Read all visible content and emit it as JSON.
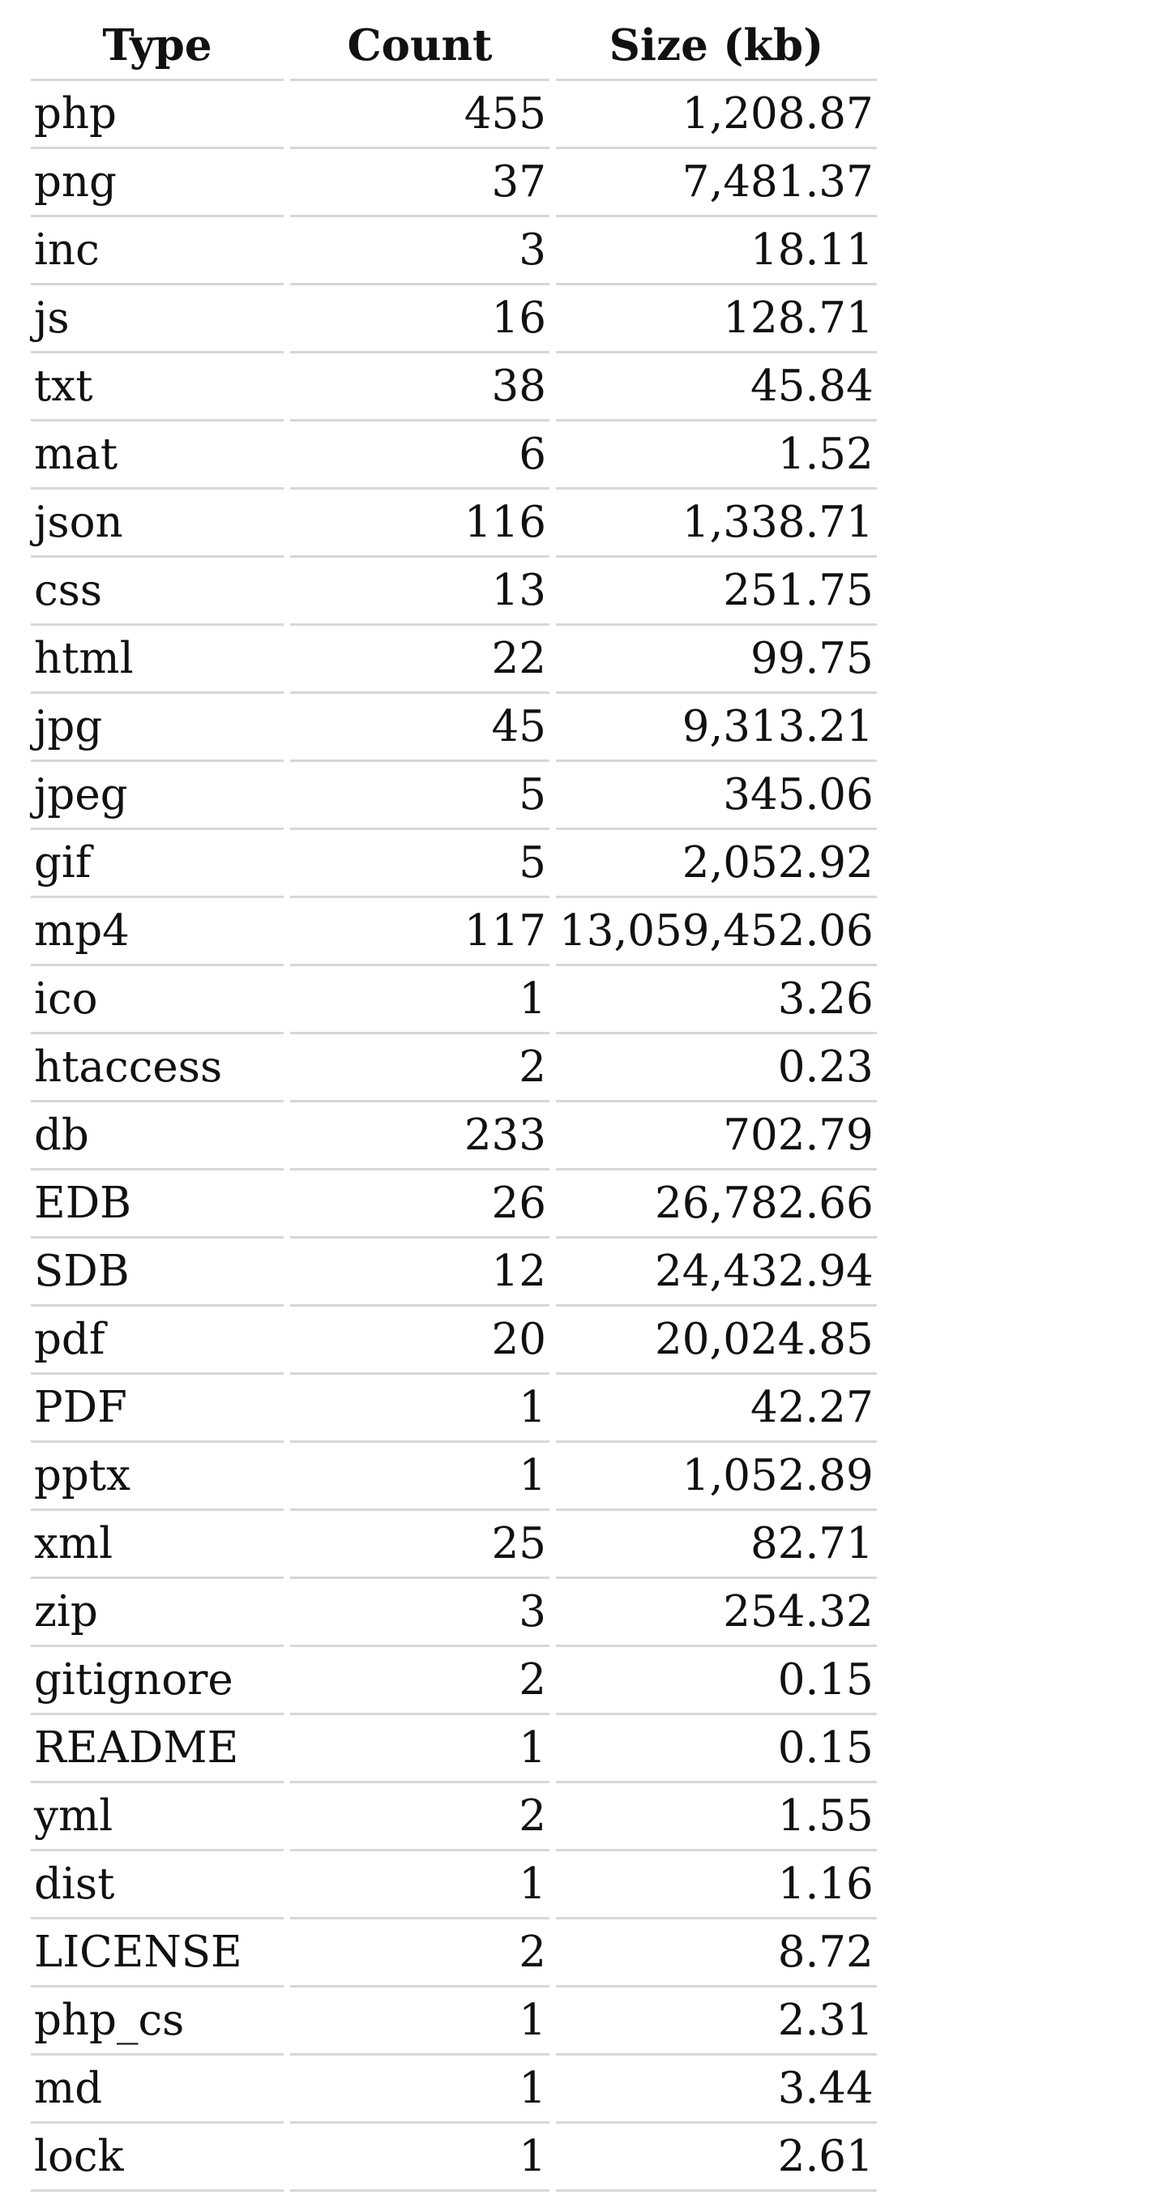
{
  "table": {
    "headers": [
      "Type",
      "Count",
      "Size (kb)"
    ],
    "rows": [
      [
        "php",
        "455",
        "1,208.87"
      ],
      [
        "png",
        "37",
        "7,481.37"
      ],
      [
        "inc",
        "3",
        "18.11"
      ],
      [
        "js",
        "16",
        "128.71"
      ],
      [
        "txt",
        "38",
        "45.84"
      ],
      [
        "mat",
        "6",
        "1.52"
      ],
      [
        "json",
        "116",
        "1,338.71"
      ],
      [
        "css",
        "13",
        "251.75"
      ],
      [
        "html",
        "22",
        "99.75"
      ],
      [
        "jpg",
        "45",
        "9,313.21"
      ],
      [
        "jpeg",
        "5",
        "345.06"
      ],
      [
        "gif",
        "5",
        "2,052.92"
      ],
      [
        "mp4",
        "117",
        "13,059,452.06"
      ],
      [
        "ico",
        "1",
        "3.26"
      ],
      [
        "htaccess",
        "2",
        "0.23"
      ],
      [
        "db",
        "233",
        "702.79"
      ],
      [
        "EDB",
        "26",
        "26,782.66"
      ],
      [
        "SDB",
        "12",
        "24,432.94"
      ],
      [
        "pdf",
        "20",
        "20,024.85"
      ],
      [
        "PDF",
        "1",
        "42.27"
      ],
      [
        "pptx",
        "1",
        "1,052.89"
      ],
      [
        "xml",
        "25",
        "82.71"
      ],
      [
        "zip",
        "3",
        "254.32"
      ],
      [
        "gitignore",
        "2",
        "0.15"
      ],
      [
        "README",
        "1",
        "0.15"
      ],
      [
        "yml",
        "2",
        "1.55"
      ],
      [
        "dist",
        "1",
        "1.16"
      ],
      [
        "LICENSE",
        "2",
        "8.72"
      ],
      [
        "php_cs",
        "1",
        "2.31"
      ],
      [
        "md",
        "1",
        "3.44"
      ],
      [
        "lock",
        "1",
        "2.61"
      ]
    ]
  }
}
